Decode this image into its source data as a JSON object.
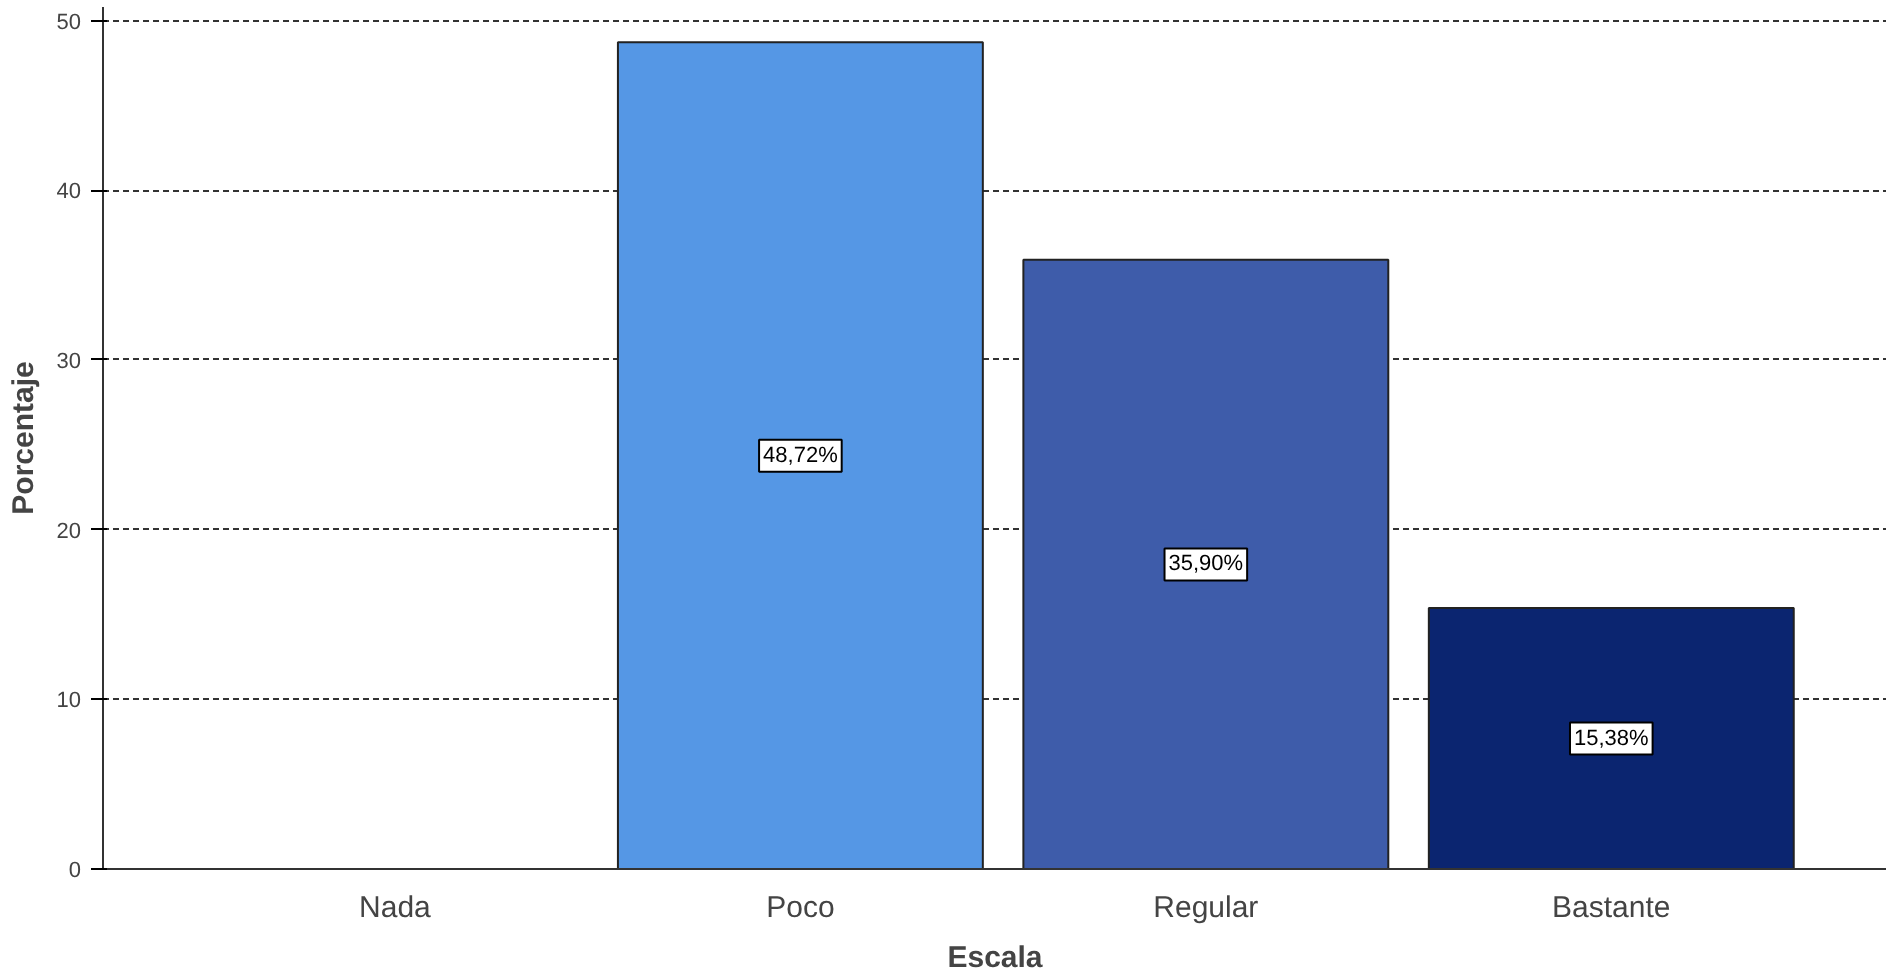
{
  "chart_data": {
    "type": "bar",
    "xlabel": "Escala",
    "ylabel": "Porcentaje",
    "categories": [
      "Nada",
      "Poco",
      "Regular",
      "Bastante"
    ],
    "values": [
      null,
      48.72,
      35.9,
      15.38
    ],
    "colors": [
      null,
      "#5597e5",
      "#3e5caa",
      "#0b2570"
    ],
    "value_labels": [
      null,
      "48,72%",
      "35,90%",
      "15,38%"
    ],
    "ylim": [
      0,
      50.8
    ],
    "yticks": [
      0,
      10,
      20,
      30,
      40,
      50
    ],
    "grid": "y"
  }
}
